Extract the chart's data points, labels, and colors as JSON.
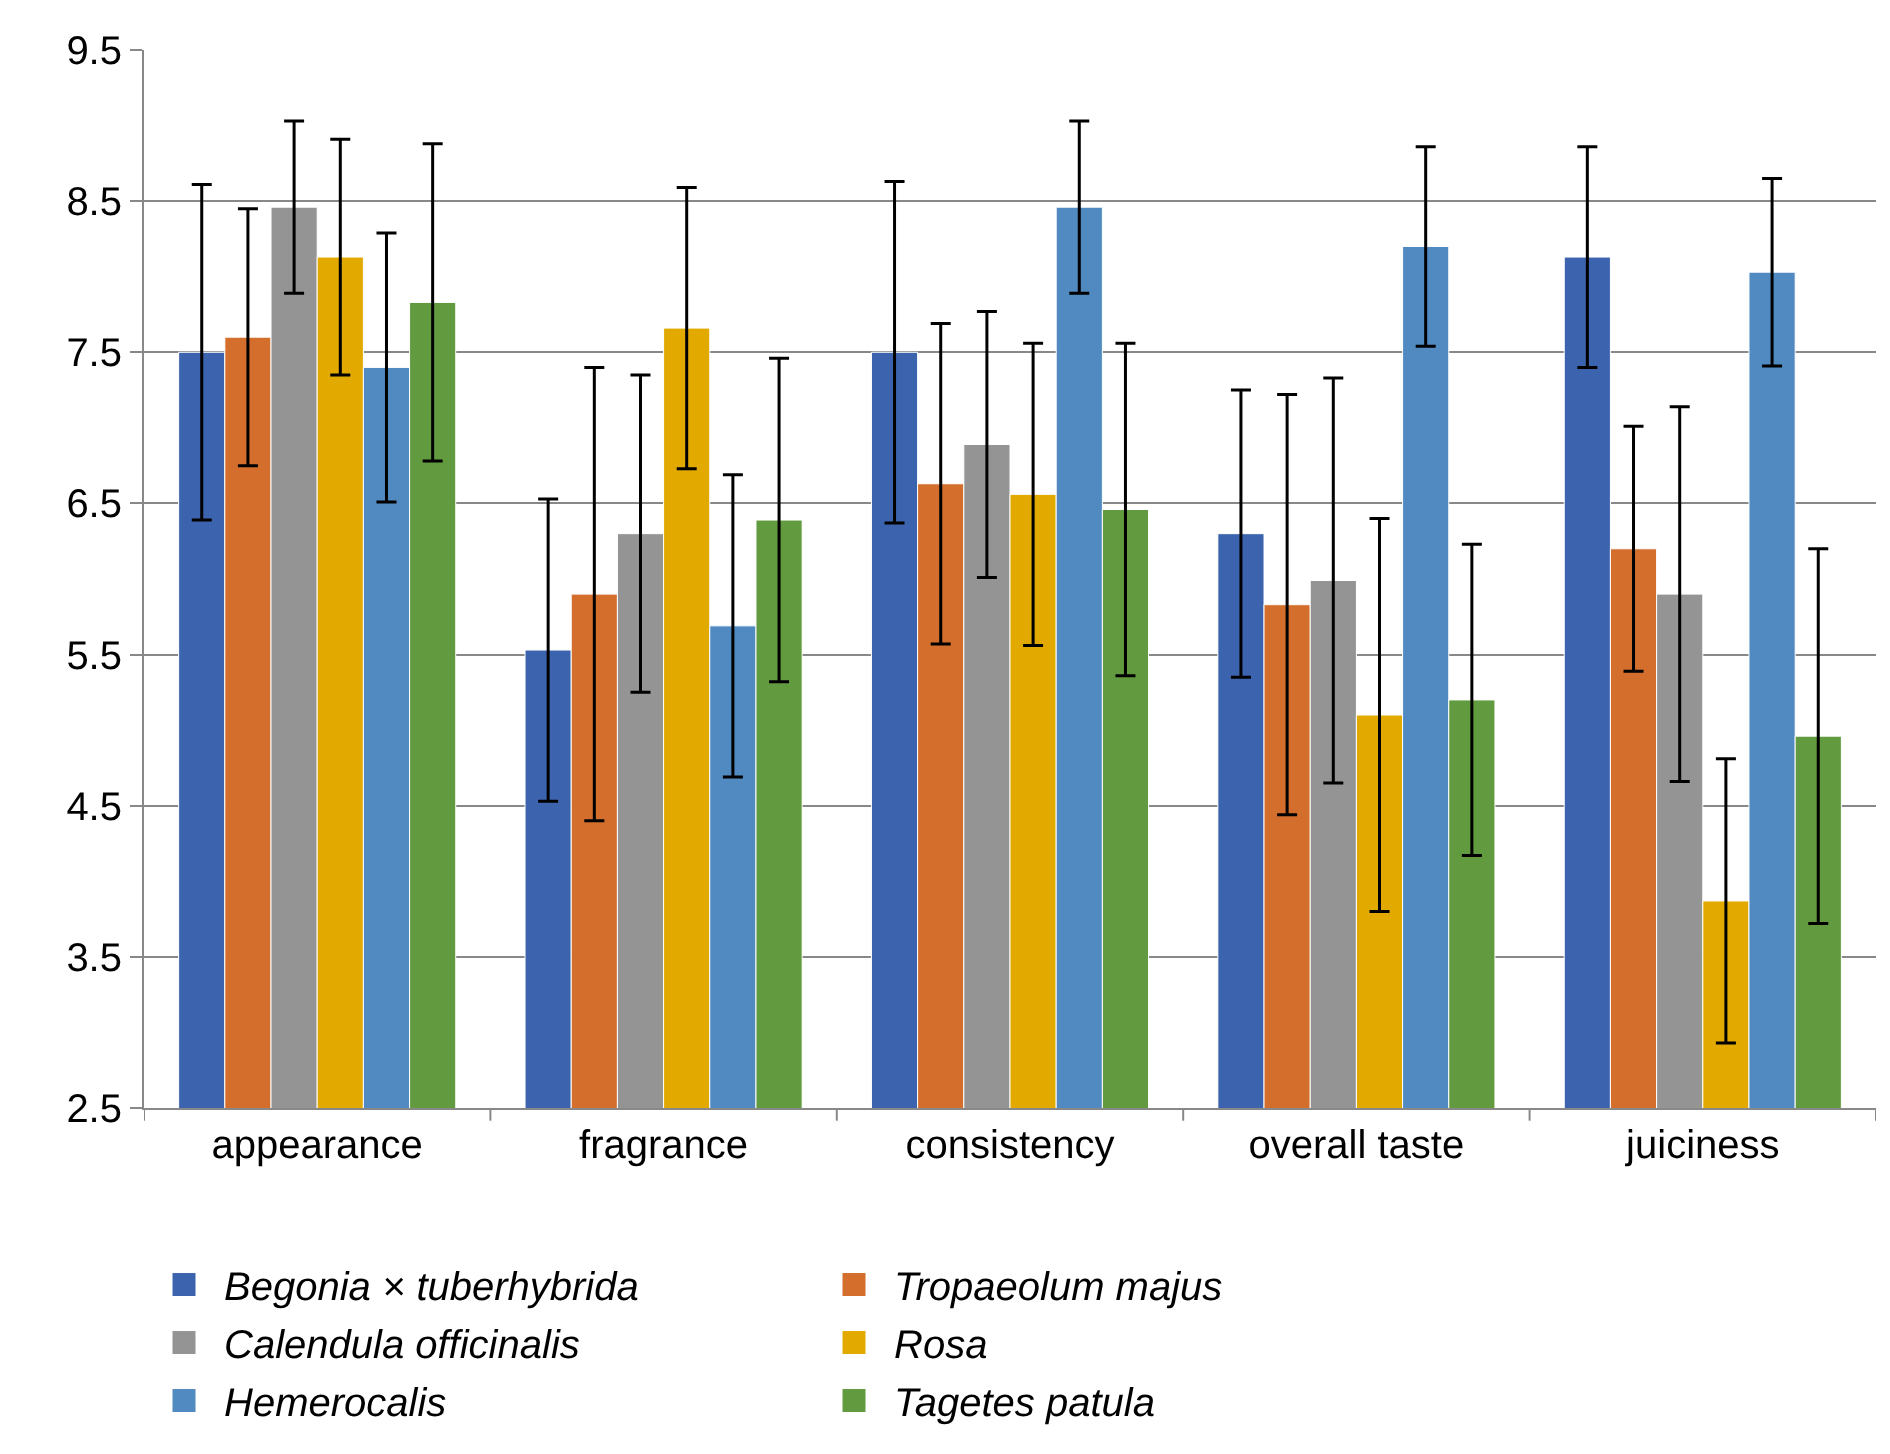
{
  "chart_data": {
    "type": "bar",
    "categories": [
      "appearance",
      "fragrance",
      "consistency",
      "overall taste",
      "juiciness"
    ],
    "series": [
      {
        "name": "Begonia × tuberhybrida",
        "color": "#3c64ae",
        "values": [
          7.5,
          5.53,
          7.5,
          6.3,
          8.13
        ],
        "errors": [
          1.11,
          1.0,
          1.13,
          0.95,
          0.73
        ]
      },
      {
        "name": "Tropaeolum majus",
        "color": "#d36e2c",
        "values": [
          7.6,
          5.9,
          6.63,
          5.83,
          6.2
        ],
        "errors": [
          0.85,
          1.5,
          1.06,
          1.39,
          0.81
        ]
      },
      {
        "name": "Calendula officinalis",
        "color": "#949494",
        "values": [
          8.46,
          6.3,
          6.89,
          5.99,
          5.9
        ],
        "errors": [
          0.57,
          1.05,
          0.88,
          1.34,
          1.24
        ]
      },
      {
        "name": "Rosa",
        "color": "#e2a900",
        "values": [
          8.13,
          7.66,
          6.56,
          5.1,
          3.87
        ],
        "errors": [
          0.78,
          0.93,
          1.0,
          1.3,
          0.94
        ]
      },
      {
        "name": "Hemerocalis",
        "color": "#508ac0",
        "values": [
          7.4,
          5.69,
          8.46,
          8.2,
          8.03
        ],
        "errors": [
          0.89,
          1.0,
          0.57,
          0.66,
          0.62
        ]
      },
      {
        "name": "Tagetes patula",
        "color": "#629b3f",
        "values": [
          7.83,
          6.39,
          6.46,
          5.2,
          4.96
        ],
        "errors": [
          1.05,
          1.07,
          1.1,
          1.03,
          1.24
        ]
      }
    ],
    "ylim": [
      2.5,
      9.5
    ],
    "yticks": [
      2.5,
      3.5,
      4.5,
      5.5,
      6.5,
      7.5,
      8.5,
      9.5
    ],
    "grid": "y",
    "legend": "bottom"
  }
}
